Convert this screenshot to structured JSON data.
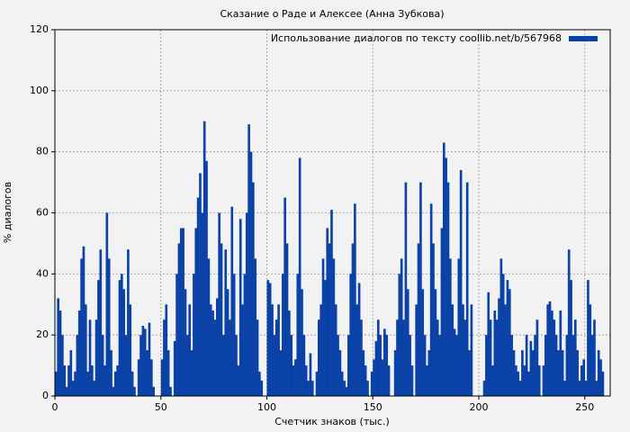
{
  "chart_data": {
    "type": "histogram",
    "title": "Сказание о Раде и Алексее (Анна Зубкова)",
    "x_label": "Счетчик знаков (тыс.)",
    "y_label": "% диалогов",
    "legend_position": "upper right",
    "grid": true,
    "xlim": [
      0,
      262
    ],
    "xticks": [
      0,
      50,
      100,
      150,
      200,
      250
    ],
    "ylim": [
      0,
      120
    ],
    "yticks": [
      0,
      20,
      40,
      60,
      80,
      100,
      120
    ],
    "bins": [
      0,
      1,
      2,
      3,
      4,
      5,
      6,
      7,
      8,
      9,
      10,
      11,
      12,
      13,
      14,
      15,
      16,
      17,
      18,
      19,
      20,
      21,
      22,
      23,
      24,
      25,
      26,
      27,
      28,
      29,
      30,
      31,
      32,
      33,
      34,
      35,
      36,
      37,
      38,
      39,
      40,
      41,
      42,
      43,
      44,
      45,
      46,
      47,
      48,
      49,
      50,
      51,
      52,
      53,
      54,
      55,
      56,
      57,
      58,
      59,
      60,
      61,
      62,
      63,
      64,
      65,
      66,
      67,
      68,
      69,
      70,
      71,
      72,
      73,
      74,
      75,
      76,
      77,
      78,
      79,
      80,
      81,
      82,
      83,
      84,
      85,
      86,
      87,
      88,
      89,
      90,
      91,
      92,
      93,
      94,
      95,
      96,
      97,
      98,
      99,
      100,
      101,
      102,
      103,
      104,
      105,
      106,
      107,
      108,
      109,
      110,
      111,
      112,
      113,
      114,
      115,
      116,
      117,
      118,
      119,
      120,
      121,
      122,
      123,
      124,
      125,
      126,
      127,
      128,
      129,
      130,
      131,
      132,
      133,
      134,
      135,
      136,
      137,
      138,
      139,
      140,
      141,
      142,
      143,
      144,
      145,
      146,
      147,
      148,
      149,
      150,
      151,
      152,
      153,
      154,
      155,
      156,
      157,
      158,
      159,
      160,
      161,
      162,
      163,
      164,
      165,
      166,
      167,
      168,
      169,
      170,
      171,
      172,
      173,
      174,
      175,
      176,
      177,
      178,
      179,
      180,
      181,
      182,
      183,
      184,
      185,
      186,
      187,
      188,
      189,
      190,
      191,
      192,
      193,
      194,
      195,
      196,
      197,
      198,
      199,
      200,
      201,
      202,
      203,
      204,
      205,
      206,
      207,
      208,
      209,
      210,
      211,
      212,
      213,
      214,
      215,
      216,
      217,
      218,
      219,
      220,
      221,
      222,
      223,
      224,
      225,
      226,
      227,
      228,
      229,
      230,
      231,
      232,
      233,
      234,
      235,
      236,
      237,
      238,
      239,
      240,
      241,
      242,
      243,
      244,
      245,
      246,
      247,
      248,
      249,
      250,
      251,
      252,
      253,
      254,
      255,
      256,
      257,
      258,
      259,
      260
    ],
    "series": [
      {
        "name": "Использование диалогов по тексту coollib.net/b/567968",
        "color": "#0b42a8",
        "values": [
          8,
          32,
          28,
          20,
          10,
          3,
          10,
          15,
          5,
          8,
          20,
          28,
          45,
          49,
          30,
          8,
          25,
          10,
          5,
          25,
          38,
          48,
          20,
          10,
          60,
          45,
          15,
          3,
          8,
          10,
          38,
          40,
          35,
          20,
          48,
          30,
          8,
          3,
          0,
          12,
          20,
          23,
          22,
          15,
          24,
          12,
          3,
          0,
          0,
          0,
          12,
          25,
          30,
          15,
          3,
          0,
          18,
          40,
          50,
          55,
          55,
          35,
          20,
          30,
          15,
          40,
          55,
          65,
          73,
          60,
          90,
          77,
          45,
          30,
          28,
          25,
          32,
          60,
          50,
          20,
          48,
          35,
          25,
          62,
          40,
          20,
          10,
          58,
          30,
          40,
          60,
          89,
          80,
          70,
          45,
          25,
          8,
          5,
          0,
          0,
          38,
          37,
          30,
          20,
          25,
          30,
          15,
          40,
          65,
          50,
          28,
          20,
          10,
          12,
          40,
          78,
          35,
          20,
          10,
          5,
          14,
          5,
          0,
          8,
          25,
          30,
          45,
          38,
          55,
          50,
          61,
          45,
          30,
          20,
          15,
          8,
          5,
          3,
          20,
          40,
          50,
          63,
          30,
          37,
          25,
          15,
          10,
          5,
          0,
          8,
          12,
          18,
          25,
          20,
          12,
          22,
          20,
          10,
          0,
          0,
          15,
          25,
          40,
          45,
          25,
          70,
          35,
          20,
          10,
          0,
          30,
          50,
          70,
          35,
          20,
          10,
          15,
          63,
          50,
          35,
          25,
          20,
          55,
          83,
          78,
          70,
          45,
          30,
          22,
          20,
          45,
          74,
          30,
          25,
          70,
          15,
          30,
          0,
          0,
          0,
          0,
          0,
          5,
          20,
          34,
          25,
          10,
          28,
          25,
          32,
          45,
          40,
          30,
          38,
          35,
          20,
          15,
          10,
          8,
          5,
          15,
          10,
          20,
          8,
          18,
          15,
          20,
          25,
          10,
          0,
          10,
          20,
          30,
          31,
          28,
          25,
          20,
          15,
          28,
          15,
          5,
          20,
          48,
          38,
          20,
          25,
          15,
          5,
          10,
          12,
          5,
          38,
          30,
          20,
          25,
          5,
          15,
          12,
          8,
          0
        ]
      }
    ]
  }
}
